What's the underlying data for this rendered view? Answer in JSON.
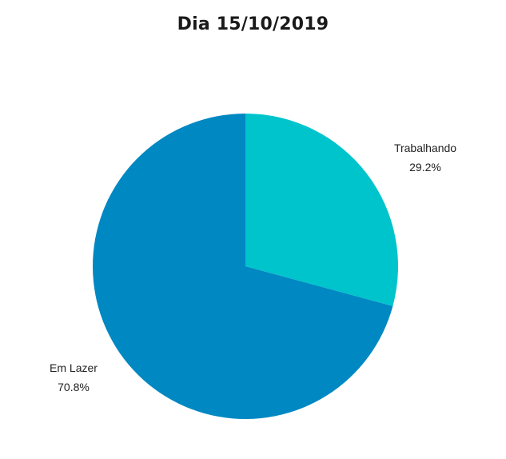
{
  "chart_data": {
    "type": "pie",
    "title": "Dia 15/10/2019",
    "slices": [
      {
        "label": "Trabalhando",
        "value": 29.2,
        "percent_label": "29.2%",
        "color": "#00c4cc"
      },
      {
        "label": "Em Lazer",
        "value": 70.8,
        "percent_label": "70.8%",
        "color": "#0088c2"
      }
    ],
    "legend": "none",
    "labels": "outside"
  }
}
